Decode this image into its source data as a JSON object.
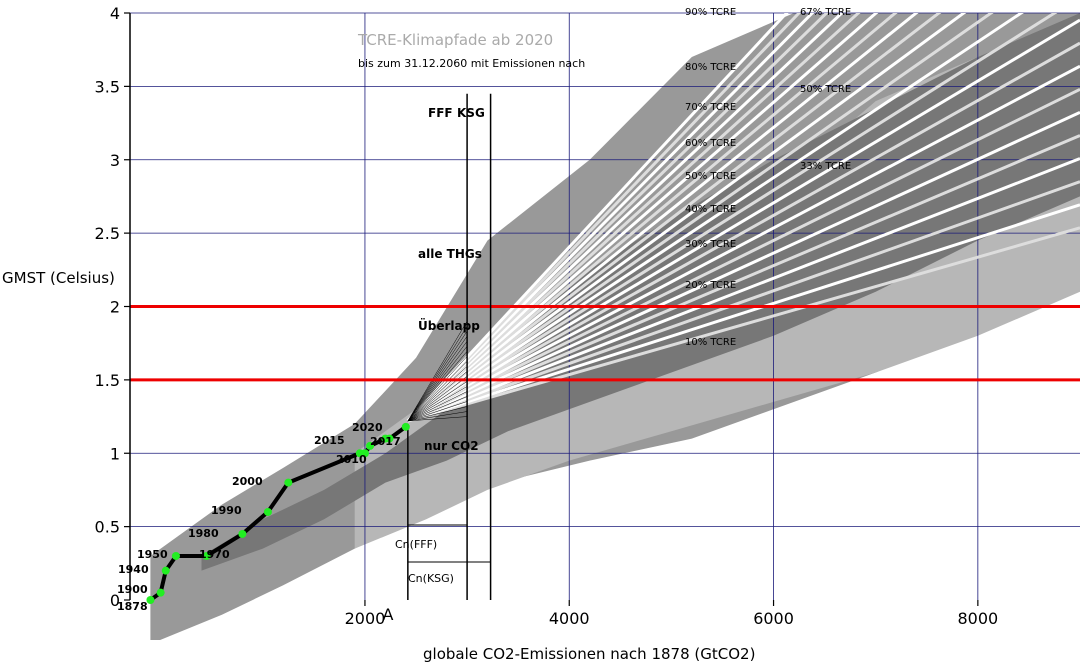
{
  "chart_data": {
    "type": "line",
    "title": "TCRE-Klimapfade ab 2020",
    "subtitle": "bis zum 31.12.2060 mit Emissionen nach",
    "xlabel": "globale CO2-Emissionen nach 1878 (GtCO2)",
    "ylabel": "GMST (Celsius)",
    "xlim": [
      -300,
      9000
    ],
    "ylim": [
      0,
      4
    ],
    "x_ticks": [
      "2000",
      "4000",
      "6000",
      "8000"
    ],
    "y_ticks": [
      "0",
      "0.5",
      "1",
      "1.5",
      "2",
      "2.5",
      "3",
      "3.5",
      "4"
    ],
    "grid": true,
    "hlines": [
      {
        "y": 1.5,
        "color": "#ee0000"
      },
      {
        "y": 2.0,
        "color": "#ee0000"
      }
    ],
    "vlines": [
      {
        "x": 2420,
        "label": "A"
      },
      {
        "x": 3000,
        "label": "FFF"
      },
      {
        "x": 3230,
        "label": "KSG"
      }
    ],
    "bands": [
      {
        "name": "alle THGs",
        "color": "#999999"
      },
      {
        "name": "Überlapp",
        "color": "#777777"
      },
      {
        "name": "nur CO2",
        "color": "#b7b7b7"
      }
    ],
    "series": [
      {
        "name": "",
        "color": "#000000",
        "marker_color": "#22ee22",
        "x": [
          -100,
          0,
          50,
          150,
          450,
          800,
          1050,
          1250,
          1950,
          2000,
          2050,
          2200,
          2240,
          2400
        ],
        "y": [
          0.0,
          0.05,
          0.2,
          0.3,
          0.3,
          0.45,
          0.6,
          0.8,
          1.0,
          1.0,
          1.05,
          1.1,
          1.1,
          1.18
        ],
        "labels": [
          "1878",
          "1900",
          "1940",
          "1950",
          "1970",
          "1980",
          "1990",
          "2000",
          "2010",
          "2010",
          "2015",
          "2017",
          "2017",
          "2020"
        ]
      }
    ],
    "pathways": {
      "origin": {
        "x": 2420,
        "y": 1.22
      },
      "pct": [
        "10%",
        "20%",
        "30%",
        "40%",
        "50%",
        "60%",
        "67%",
        "70%",
        "80%",
        "90%"
      ],
      "slopes_per_1000Gt": [
        0.2,
        0.3,
        0.37,
        0.42,
        0.45,
        0.5,
        0.55,
        0.58,
        0.65,
        0.75
      ]
    },
    "band_edges": {
      "alle_THGs": {
        "x": [
          -100,
          600,
          1200,
          1900,
          2500,
          3200,
          4200,
          5200,
          6200,
          7000,
          8000,
          9000
        ],
        "upper": [
          0.3,
          0.65,
          0.9,
          1.2,
          1.65,
          2.45,
          3.0,
          3.7,
          4.0,
          4.0,
          4.0,
          4.0
        ],
        "lower": [
          -0.3,
          -0.1,
          0.1,
          0.35,
          0.6,
          0.78,
          0.95,
          1.1,
          1.35,
          1.55,
          1.85,
          2.15
        ]
      },
      "nur_CO2": {
        "x": [
          1900,
          2600,
          3200,
          4000,
          5000,
          6000,
          7000,
          8000,
          9000
        ],
        "upper": [
          1.0,
          1.35,
          1.6,
          1.95,
          2.3,
          2.8,
          3.4,
          3.7,
          4.0
        ],
        "lower": [
          0.35,
          0.55,
          0.75,
          0.95,
          1.15,
          1.35,
          1.55,
          1.8,
          2.1
        ]
      },
      "ueberlapp": {
        "x": [
          400,
          1000,
          1600,
          2200,
          2800,
          3400,
          4200,
          5000,
          6000,
          7000,
          8000,
          9000
        ],
        "upper": [
          0.3,
          0.55,
          0.75,
          1.0,
          1.3,
          1.8,
          2.25,
          2.6,
          3.0,
          3.35,
          3.7,
          4.0
        ],
        "lower": [
          0.2,
          0.35,
          0.55,
          0.8,
          0.95,
          1.15,
          1.35,
          1.55,
          1.8,
          2.1,
          2.45,
          2.75
        ]
      }
    },
    "annotations": {
      "alle_thgs": "alle THGs",
      "ueberlapp": "Überlapp",
      "nur_co2": "nur CO2",
      "fff": "FFF",
      "ksg": "KSG",
      "a": "A",
      "cn_fff": "Cn(FFF)",
      "cn_ksg": "Cn(KSG)",
      "tcre_labels": [
        "90% TCRE",
        "67% TCRE",
        "80% TCRE",
        "50% TCRE",
        "70% TCRE",
        "60% TCRE",
        "33% TCRE",
        "50% TCRE",
        "40% TCRE",
        "30% TCRE",
        "20% TCRE",
        "10% TCRE"
      ]
    }
  }
}
